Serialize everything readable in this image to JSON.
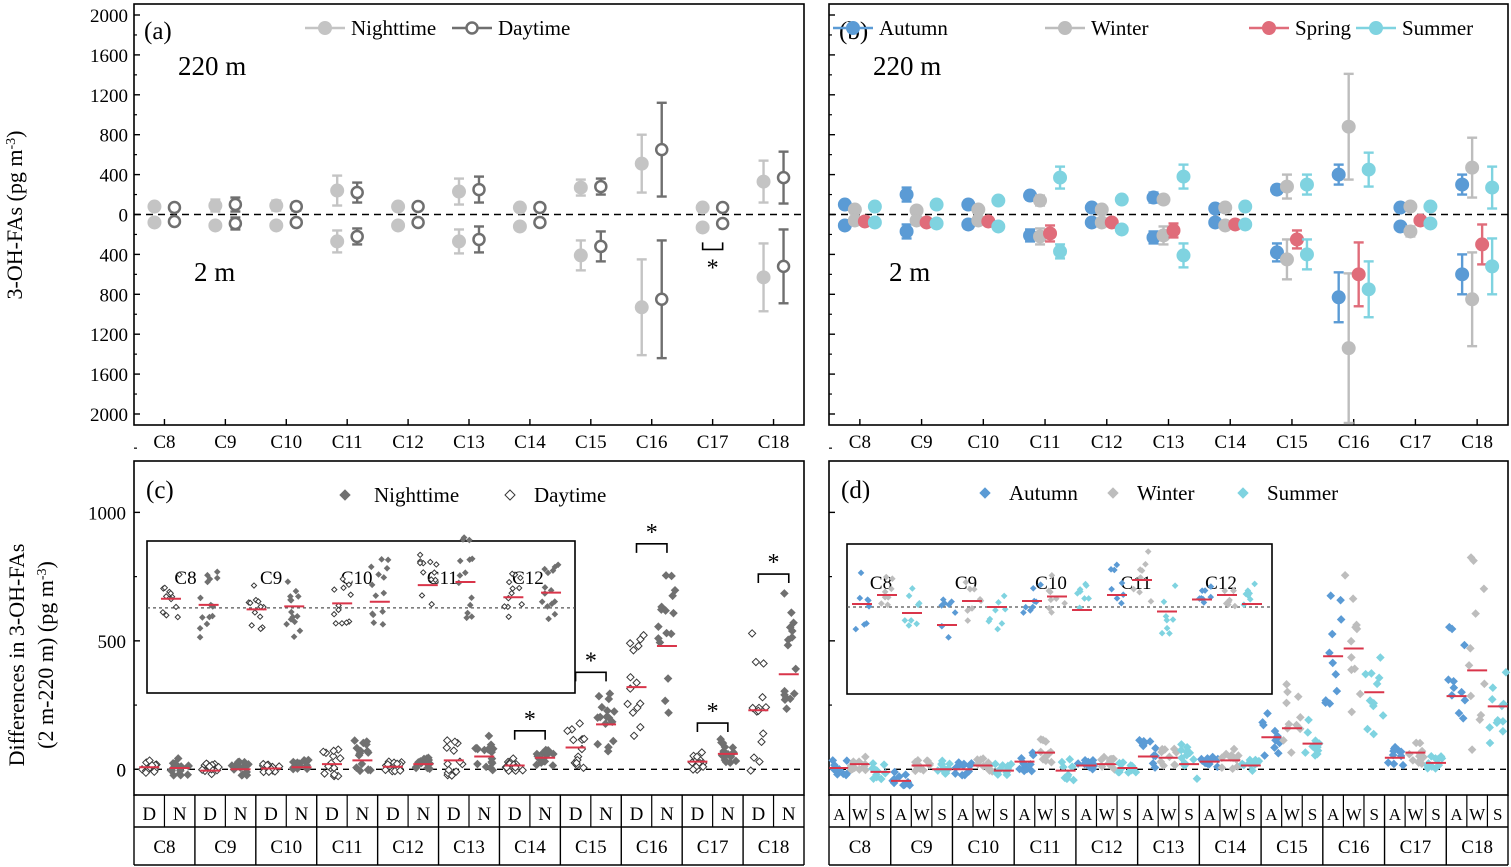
{
  "colors": {
    "night": "#c4c4c4",
    "day": "#6f6f6f",
    "night_pt": "#707070",
    "day_pt": "#3a3a3a",
    "autumn": "#5b9bd5",
    "winter": "#bdbdbd",
    "spring": "#e06c7a",
    "summer": "#7fd3e0",
    "mean": "#d9354a"
  },
  "chart_data": [
    {
      "id": "a",
      "type": "scatter",
      "panel_label": "(a)",
      "ylabel": "3-OH-FAs (pg m",
      "ylabel_sup": "-3",
      "ylabel_close": ")",
      "upper_label": "220 m",
      "lower_label": "2 m",
      "yticks": [
        "2000",
        "1600",
        "1200",
        "800",
        "400",
        "0",
        "400",
        "800",
        "1200",
        "1600",
        "2000"
      ],
      "ylim": [
        -2000,
        2000
      ],
      "categories": [
        "C8",
        "C9",
        "C10",
        "C11",
        "C12",
        "C13",
        "C14",
        "C15",
        "C16",
        "C17",
        "C18"
      ],
      "series": [
        {
          "name": "Nighttime",
          "key": "night",
          "marker": "filled",
          "upper": [
            [
              80,
              30
            ],
            [
              90,
              60
            ],
            [
              90,
              50
            ],
            [
              240,
              150
            ],
            [
              80,
              30
            ],
            [
              230,
              130
            ],
            [
              70,
              20
            ],
            [
              270,
              80
            ],
            [
              510,
              290
            ],
            [
              70,
              25
            ],
            [
              330,
              210
            ]
          ],
          "lower": [
            [
              -80,
              30
            ],
            [
              -110,
              30
            ],
            [
              -110,
              30
            ],
            [
              -270,
              110
            ],
            [
              -110,
              25
            ],
            [
              -270,
              120
            ],
            [
              -120,
              30
            ],
            [
              -410,
              150
            ],
            [
              -930,
              480
            ],
            [
              -130,
              30
            ],
            [
              -630,
              340
            ]
          ]
        },
        {
          "name": "Daytime",
          "key": "day",
          "marker": "open",
          "upper": [
            [
              70,
              30
            ],
            [
              100,
              70
            ],
            [
              80,
              40
            ],
            [
              220,
              100
            ],
            [
              80,
              30
            ],
            [
              250,
              130
            ],
            [
              70,
              25
            ],
            [
              280,
              80
            ],
            [
              650,
              470
            ],
            [
              70,
              25
            ],
            [
              370,
              260
            ]
          ],
          "lower": [
            [
              -70,
              30
            ],
            [
              -90,
              60
            ],
            [
              -80,
              30
            ],
            [
              -220,
              80
            ],
            [
              -80,
              25
            ],
            [
              -250,
              130
            ],
            [
              -80,
              30
            ],
            [
              -320,
              150
            ],
            [
              -850,
              590
            ],
            [
              -90,
              30
            ],
            [
              -520,
              370
            ]
          ]
        }
      ],
      "annotation": "*"
    },
    {
      "id": "b",
      "type": "scatter",
      "panel_label": "(b)",
      "upper_label": "220 m",
      "lower_label": "2 m",
      "ylim": [
        -2000,
        2000
      ],
      "categories": [
        "C8",
        "C9",
        "C10",
        "C11",
        "C12",
        "C13",
        "C14",
        "C15",
        "C16",
        "C17",
        "C18"
      ],
      "series": [
        {
          "name": "Autumn",
          "key": "autumn",
          "upper": [
            [
              100,
              30
            ],
            [
              200,
              70
            ],
            [
              100,
              40
            ],
            [
              190,
              40
            ],
            [
              70,
              25
            ],
            [
              170,
              50
            ],
            [
              60,
              20
            ],
            [
              250,
              40
            ],
            [
              400,
              100
            ],
            [
              70,
              20
            ],
            [
              300,
              100
            ]
          ],
          "lower": [
            [
              -110,
              30
            ],
            [
              -170,
              70
            ],
            [
              -100,
              40
            ],
            [
              -210,
              60
            ],
            [
              -80,
              25
            ],
            [
              -230,
              60
            ],
            [
              -80,
              20
            ],
            [
              -380,
              90
            ],
            [
              -830,
              250
            ],
            [
              -120,
              30
            ],
            [
              -600,
              200
            ]
          ]
        },
        {
          "name": "Winter",
          "key": "winter",
          "upper": [
            [
              50,
              15
            ],
            [
              40,
              15
            ],
            [
              50,
              25
            ],
            [
              140,
              50
            ],
            [
              50,
              15
            ],
            [
              150,
              40
            ],
            [
              70,
              25
            ],
            [
              280,
              120
            ],
            [
              880,
              530
            ],
            [
              80,
              20
            ],
            [
              470,
              300
            ]
          ],
          "lower": [
            [
              -60,
              15
            ],
            [
              -60,
              15
            ],
            [
              -60,
              20
            ],
            [
              -220,
              80
            ],
            [
              -80,
              15
            ],
            [
              -210,
              90
            ],
            [
              -110,
              30
            ],
            [
              -450,
              200
            ],
            [
              -1340,
              750
            ],
            [
              -170,
              50
            ],
            [
              -850,
              470
            ]
          ]
        },
        {
          "name": "Spring",
          "key": "spring",
          "upper": [],
          "lower": [
            [
              -70,
              20
            ],
            [
              -80,
              20
            ],
            [
              -70,
              20
            ],
            [
              -190,
              80
            ],
            [
              -80,
              20
            ],
            [
              -160,
              70
            ],
            [
              -100,
              25
            ],
            [
              -250,
              90
            ],
            [
              -600,
              320
            ],
            [
              -60,
              20
            ],
            [
              -300,
              200
            ]
          ]
        },
        {
          "name": "Summer",
          "key": "summer",
          "upper": [
            [
              80,
              20
            ],
            [
              100,
              25
            ],
            [
              140,
              30
            ],
            [
              370,
              110
            ],
            [
              150,
              30
            ],
            [
              380,
              120
            ],
            [
              80,
              20
            ],
            [
              300,
              100
            ],
            [
              450,
              170
            ],
            [
              80,
              20
            ],
            [
              270,
              210
            ]
          ],
          "lower": [
            [
              -80,
              20
            ],
            [
              -90,
              25
            ],
            [
              -120,
              30
            ],
            [
              -370,
              70
            ],
            [
              -150,
              30
            ],
            [
              -410,
              120
            ],
            [
              -100,
              20
            ],
            [
              -400,
              150
            ],
            [
              -750,
              280
            ],
            [
              -90,
              20
            ],
            [
              -520,
              280
            ]
          ]
        }
      ]
    },
    {
      "id": "c",
      "type": "scatter",
      "panel_label": "(c)",
      "ylabel_line1": "Differences in 3-OH-FAs",
      "ylabel_line2": "(2 m-220 m) (pg m",
      "ylabel_sup": "-3",
      "ylabel_close": ")",
      "yticks": [
        0,
        500,
        1000
      ],
      "ylim": [
        -100,
        1200
      ],
      "categories": [
        "C8",
        "C9",
        "C10",
        "C11",
        "C12",
        "C13",
        "C14",
        "C15",
        "C16",
        "C17",
        "C18"
      ],
      "sub_labels": [
        "D",
        "N"
      ],
      "series": [
        {
          "name": "Nighttime",
          "key": "night"
        },
        {
          "name": "Daytime",
          "key": "day"
        }
      ],
      "means_day": [
        8,
        -5,
        3,
        20,
        10,
        35,
        15,
        85,
        320,
        30,
        230
      ],
      "means_night": [
        5,
        0,
        8,
        35,
        20,
        50,
        45,
        175,
        480,
        60,
        370
      ],
      "spread_day": [
        40,
        40,
        25,
        80,
        30,
        110,
        40,
        160,
        330,
        70,
        430
      ],
      "spread_night": [
        55,
        45,
        40,
        110,
        35,
        130,
        60,
        190,
        450,
        80,
        440
      ],
      "significance": [
        false,
        false,
        false,
        false,
        false,
        false,
        true,
        true,
        true,
        true,
        true
      ],
      "sig_mark": "*",
      "inset": {
        "categories": [
          "C8",
          "C9",
          "C10",
          "C11",
          "C12"
        ],
        "means_day": [
          0.62,
          0.55,
          0.59,
          0.71,
          0.63
        ],
        "means_night": [
          0.58,
          0.57,
          0.6,
          0.73,
          0.66
        ],
        "spread_day": [
          0.25,
          0.22,
          0.28,
          0.3,
          0.22
        ],
        "spread_night": [
          0.4,
          0.35,
          0.4,
          0.45,
          0.3
        ],
        "ref": 0.56
      }
    },
    {
      "id": "d",
      "type": "scatter",
      "panel_label": "(d)",
      "ylim": [
        -100,
        1200
      ],
      "categories": [
        "C8",
        "C9",
        "C10",
        "C11",
        "C12",
        "C13",
        "C14",
        "C15",
        "C16",
        "C17",
        "C18"
      ],
      "sub_labels": [
        "A",
        "W",
        "S"
      ],
      "series": [
        {
          "name": "Autumn",
          "key": "autumn"
        },
        {
          "name": "Winter",
          "key": "winter"
        },
        {
          "name": "Summer",
          "key": "summer"
        }
      ],
      "means": [
        [
          5,
          20,
          -10
        ],
        [
          -45,
          15,
          0
        ],
        [
          0,
          15,
          -5
        ],
        [
          30,
          65,
          -5
        ],
        [
          15,
          20,
          5
        ],
        [
          50,
          45,
          20
        ],
        [
          30,
          35,
          15
        ],
        [
          125,
          160,
          100
        ],
        [
          440,
          470,
          300
        ],
        [
          45,
          65,
          25
        ],
        [
          285,
          385,
          245
        ]
      ],
      "spread": [
        [
          50,
          40,
          50
        ],
        [
          50,
          40,
          50
        ],
        [
          40,
          40,
          45
        ],
        [
          70,
          80,
          75
        ],
        [
          30,
          40,
          30
        ],
        [
          90,
          70,
          110
        ],
        [
          40,
          70,
          35
        ],
        [
          140,
          250,
          160
        ],
        [
          380,
          480,
          300
        ],
        [
          60,
          80,
          40
        ],
        [
          380,
          620,
          250
        ]
      ],
      "inset": {
        "categories": [
          "C8",
          "C9",
          "C10",
          "C11",
          "C12"
        ],
        "means": [
          [
            0.6,
            0.66,
            0.54
          ],
          [
            0.46,
            0.62,
            0.58
          ],
          [
            0.62,
            0.65,
            0.56
          ],
          [
            0.66,
            0.76,
            0.55
          ],
          [
            0.63,
            0.66,
            0.6
          ]
        ],
        "spread": [
          [
            0.3,
            0.2,
            0.25
          ],
          [
            0.25,
            0.25,
            0.3
          ],
          [
            0.2,
            0.2,
            0.25
          ],
          [
            0.3,
            0.3,
            0.35
          ],
          [
            0.15,
            0.15,
            0.2
          ]
        ],
        "ref": 0.58
      }
    }
  ]
}
